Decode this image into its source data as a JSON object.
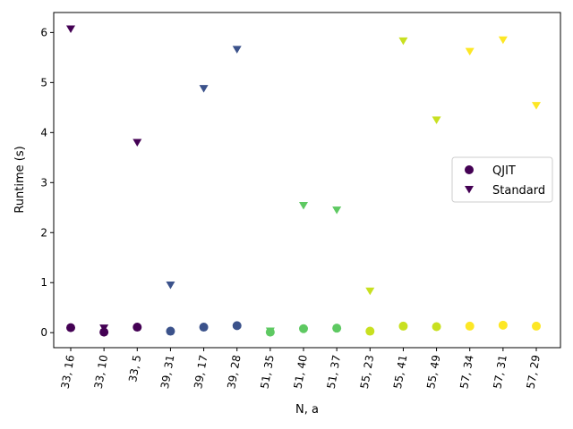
{
  "chart_data": {
    "type": "scatter",
    "xlabel": "N, a",
    "ylabel": "Runtime (s)",
    "ylim": [
      -0.3,
      6.4
    ],
    "yticks": [
      0,
      1,
      2,
      3,
      4,
      5,
      6
    ],
    "grid": false,
    "legend_position": "center-right",
    "categories": [
      "33, 16",
      "33, 10",
      "33, 5",
      "39, 31",
      "39, 17",
      "39, 28",
      "51, 35",
      "51, 40",
      "51, 37",
      "55, 23",
      "55, 41",
      "55, 49",
      "57, 34",
      "57, 31",
      "57, 29"
    ],
    "category_colors": [
      "#440154",
      "#440154",
      "#440154",
      "#3b528b",
      "#3b528b",
      "#3b528b",
      "#5ec962",
      "#5ec962",
      "#5ec962",
      "#c8e020",
      "#c8e020",
      "#c8e020",
      "#fde725",
      "#fde725",
      "#fde725"
    ],
    "series": [
      {
        "name": "QJIT",
        "marker": "circle",
        "values": [
          0.1,
          0.01,
          0.11,
          0.03,
          0.11,
          0.14,
          0.01,
          0.08,
          0.09,
          0.03,
          0.13,
          0.12,
          0.13,
          0.15,
          0.13
        ]
      },
      {
        "name": "Standard",
        "marker": "triangle-down",
        "values": [
          6.07,
          0.09,
          3.8,
          0.95,
          4.88,
          5.66,
          0.03,
          2.54,
          2.45,
          0.83,
          5.83,
          4.25,
          5.62,
          5.85,
          4.54
        ]
      }
    ],
    "legend_color": "#440154"
  }
}
